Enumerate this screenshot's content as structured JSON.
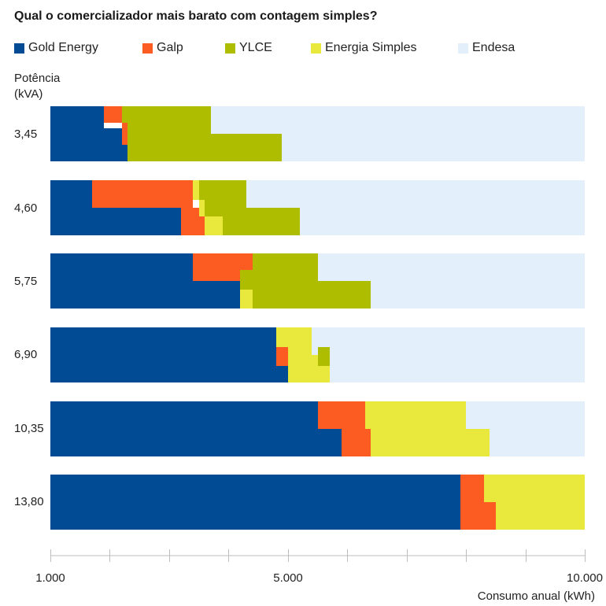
{
  "chart_data": {
    "type": "bar",
    "title": "Qual o comercializador mais barato com contagem simples?",
    "ylabel_lines": [
      "Potência",
      "(kVA)"
    ],
    "xlabel": "Consumo anual (kWh)",
    "xlim": [
      1000,
      10000
    ],
    "xticks": [
      1000,
      2000,
      3000,
      4000,
      5000,
      6000,
      7000,
      8000,
      9000,
      10000
    ],
    "xtick_labels": [
      {
        "value": 1000,
        "label": "1.000"
      },
      {
        "value": 5000,
        "label": "5.000"
      },
      {
        "value": 10000,
        "label": "10.000"
      }
    ],
    "series": [
      {
        "name": "Gold Energy",
        "color": "#004b93"
      },
      {
        "name": "Galp",
        "color": "#fc5b22"
      },
      {
        "name": "YLCE",
        "color": "#aebd00"
      },
      {
        "name": "Energia Simples",
        "color": "#e9e93d"
      },
      {
        "name": "Endesa",
        "color": "#e3f0fb"
      }
    ],
    "categories": [
      "3,45",
      "4,60",
      "5,75",
      "6,90",
      "10,35",
      "13,80"
    ],
    "rows": [
      {
        "category": "3,45",
        "segments": [
          {
            "series": "Gold Energy",
            "y": [
              0.0,
              0.4
            ],
            "x": [
              1000,
              1900
            ]
          },
          {
            "series": "Gold Energy",
            "y": [
              0.4,
              0.7
            ],
            "x": [
              1000,
              2200
            ]
          },
          {
            "series": "Gold Energy",
            "y": [
              0.7,
              1.0
            ],
            "x": [
              1000,
              2300
            ]
          },
          {
            "series": "Galp",
            "y": [
              0.0,
              0.3
            ],
            "x": [
              1900,
              2200
            ]
          },
          {
            "series": "Galp",
            "y": [
              0.3,
              0.7
            ],
            "x": [
              2200,
              2300
            ]
          },
          {
            "series": "YLCE",
            "y": [
              0.0,
              0.3
            ],
            "x": [
              2200,
              3700
            ]
          },
          {
            "series": "YLCE",
            "y": [
              0.3,
              0.5
            ],
            "x": [
              2300,
              3700
            ]
          },
          {
            "series": "YLCE",
            "y": [
              0.5,
              1.0
            ],
            "x": [
              2300,
              4900
            ]
          },
          {
            "series": "Endesa",
            "y": [
              0.0,
              0.5
            ],
            "x": [
              3700,
              10000
            ]
          },
          {
            "series": "Endesa",
            "y": [
              0.5,
              1.0
            ],
            "x": [
              4900,
              10000
            ]
          }
        ]
      },
      {
        "category": "4,60",
        "segments": [
          {
            "series": "Gold Energy",
            "y": [
              0.0,
              0.5
            ],
            "x": [
              1000,
              1700
            ]
          },
          {
            "series": "Gold Energy",
            "y": [
              0.5,
              1.0
            ],
            "x": [
              1000,
              3200
            ]
          },
          {
            "series": "Galp",
            "y": [
              0.0,
              0.5
            ],
            "x": [
              1700,
              3400
            ]
          },
          {
            "series": "Galp",
            "y": [
              0.5,
              1.0
            ],
            "x": [
              3200,
              3600
            ]
          },
          {
            "series": "Energia Simples",
            "y": [
              0.0,
              0.35
            ],
            "x": [
              3400,
              3500
            ]
          },
          {
            "series": "Energia Simples",
            "y": [
              0.35,
              0.65
            ],
            "x": [
              3500,
              3600
            ]
          },
          {
            "series": "Energia Simples",
            "y": [
              0.65,
              1.0
            ],
            "x": [
              3600,
              3900
            ]
          },
          {
            "series": "YLCE",
            "y": [
              0.0,
              0.35
            ],
            "x": [
              3500,
              4300
            ]
          },
          {
            "series": "YLCE",
            "y": [
              0.35,
              0.5
            ],
            "x": [
              3600,
              4300
            ]
          },
          {
            "series": "YLCE",
            "y": [
              0.5,
              0.65
            ],
            "x": [
              3600,
              5200
            ]
          },
          {
            "series": "YLCE",
            "y": [
              0.65,
              1.0
            ],
            "x": [
              3900,
              5200
            ]
          },
          {
            "series": "Endesa",
            "y": [
              0.0,
              0.5
            ],
            "x": [
              4300,
              10000
            ]
          },
          {
            "series": "Endesa",
            "y": [
              0.5,
              1.0
            ],
            "x": [
              5200,
              10000
            ]
          }
        ]
      },
      {
        "category": "5,75",
        "segments": [
          {
            "series": "Gold Energy",
            "y": [
              0.0,
              0.5
            ],
            "x": [
              1000,
              3400
            ]
          },
          {
            "series": "Gold Energy",
            "y": [
              0.5,
              1.0
            ],
            "x": [
              1000,
              4200
            ]
          },
          {
            "series": "Galp",
            "y": [
              0.0,
              0.5
            ],
            "x": [
              3400,
              4400
            ]
          },
          {
            "series": "YLCE",
            "y": [
              0.0,
              0.3
            ],
            "x": [
              4400,
              5500
            ]
          },
          {
            "series": "YLCE",
            "y": [
              0.3,
              0.5
            ],
            "x": [
              4200,
              5500
            ]
          },
          {
            "series": "YLCE",
            "y": [
              0.5,
              0.65
            ],
            "x": [
              4200,
              6400
            ]
          },
          {
            "series": "YLCE",
            "y": [
              0.65,
              1.0
            ],
            "x": [
              4400,
              6400
            ]
          },
          {
            "series": "Energia Simples",
            "y": [
              0.65,
              1.0
            ],
            "x": [
              4200,
              4400
            ]
          },
          {
            "series": "Endesa",
            "y": [
              0.0,
              0.5
            ],
            "x": [
              5500,
              10000
            ]
          },
          {
            "series": "Endesa",
            "y": [
              0.5,
              1.0
            ],
            "x": [
              6400,
              10000
            ]
          }
        ]
      },
      {
        "category": "6,90",
        "segments": [
          {
            "series": "Gold Energy",
            "y": [
              0.0,
              0.7
            ],
            "x": [
              1000,
              4800
            ]
          },
          {
            "series": "Gold Energy",
            "y": [
              0.7,
              1.0
            ],
            "x": [
              1000,
              5000
            ]
          },
          {
            "series": "Galp",
            "y": [
              0.35,
              0.7
            ],
            "x": [
              4800,
              5000
            ]
          },
          {
            "series": "Energia Simples",
            "y": [
              0.0,
              0.35
            ],
            "x": [
              4800,
              5400
            ]
          },
          {
            "series": "Energia Simples",
            "y": [
              0.35,
              0.5
            ],
            "x": [
              5000,
              5400
            ]
          },
          {
            "series": "Energia Simples",
            "y": [
              0.5,
              0.7
            ],
            "x": [
              5000,
              5500
            ]
          },
          {
            "series": "Energia Simples",
            "y": [
              0.7,
              1.0
            ],
            "x": [
              5000,
              5700
            ]
          },
          {
            "series": "YLCE",
            "y": [
              0.35,
              0.7
            ],
            "x": [
              5500,
              5700
            ]
          },
          {
            "series": "Endesa",
            "y": [
              0.0,
              0.35
            ],
            "x": [
              5400,
              10000
            ]
          },
          {
            "series": "Endesa",
            "y": [
              0.35,
              0.5
            ],
            "x": [
              5400,
              5500
            ]
          },
          {
            "series": "Endesa",
            "y": [
              0.35,
              0.7
            ],
            "x": [
              5700,
              10000
            ]
          },
          {
            "series": "Endesa",
            "y": [
              0.7,
              1.0
            ],
            "x": [
              5700,
              10000
            ]
          }
        ]
      },
      {
        "category": "10,35",
        "segments": [
          {
            "series": "Gold Energy",
            "y": [
              0.0,
              0.5
            ],
            "x": [
              1000,
              5500
            ]
          },
          {
            "series": "Gold Energy",
            "y": [
              0.5,
              1.0
            ],
            "x": [
              1000,
              5900
            ]
          },
          {
            "series": "Galp",
            "y": [
              0.0,
              0.5
            ],
            "x": [
              5500,
              6300
            ]
          },
          {
            "series": "Galp",
            "y": [
              0.5,
              1.0
            ],
            "x": [
              5900,
              6400
            ]
          },
          {
            "series": "Energia Simples",
            "y": [
              0.0,
              0.5
            ],
            "x": [
              6300,
              8000
            ]
          },
          {
            "series": "Energia Simples",
            "y": [
              0.5,
              1.0
            ],
            "x": [
              6400,
              8400
            ]
          },
          {
            "series": "Endesa",
            "y": [
              0.0,
              0.5
            ],
            "x": [
              8000,
              10000
            ]
          },
          {
            "series": "Endesa",
            "y": [
              0.5,
              1.0
            ],
            "x": [
              8400,
              10000
            ]
          }
        ]
      },
      {
        "category": "13,80",
        "segments": [
          {
            "series": "Gold Energy",
            "y": [
              0.0,
              1.0
            ],
            "x": [
              1000,
              7900
            ]
          },
          {
            "series": "Galp",
            "y": [
              0.0,
              0.5
            ],
            "x": [
              7900,
              8300
            ]
          },
          {
            "series": "Galp",
            "y": [
              0.5,
              1.0
            ],
            "x": [
              7900,
              8500
            ]
          },
          {
            "series": "Energia Simples",
            "y": [
              0.0,
              0.5
            ],
            "x": [
              8300,
              10000
            ]
          },
          {
            "series": "Energia Simples",
            "y": [
              0.5,
              1.0
            ],
            "x": [
              8500,
              10000
            ]
          }
        ]
      }
    ]
  }
}
